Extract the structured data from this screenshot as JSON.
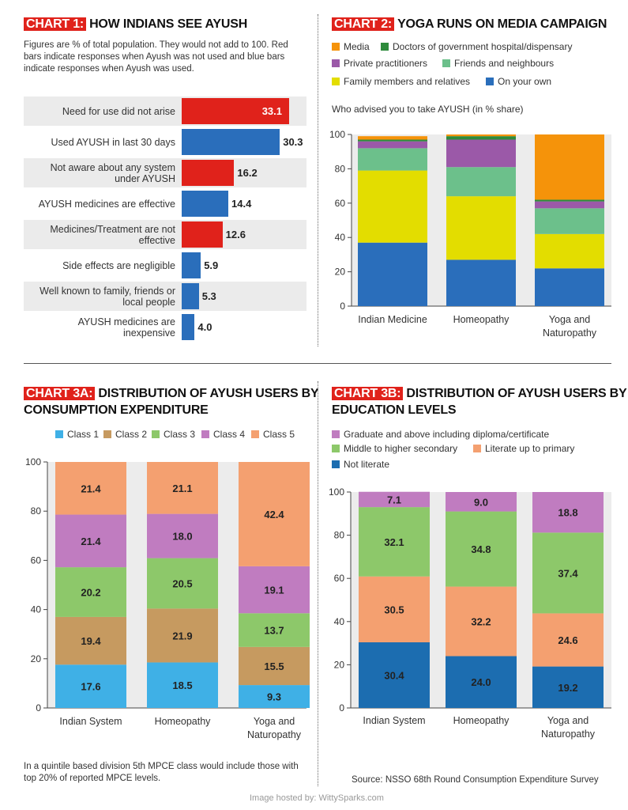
{
  "colors": {
    "red": "#e0221b",
    "blue": "#2a6ebb",
    "media": "#f5930a",
    "doctors_gov": "#2e8b3c",
    "private": "#9b59a8",
    "friends": "#6cc08b",
    "family": "#e3dd00",
    "own": "#2a6ebb",
    "class1": "#3fb0e6",
    "class2": "#c69a60",
    "class3": "#8dc86a",
    "class4": "#c07cc0",
    "class5": "#f4a070",
    "graduate": "#c07cc0",
    "middle": "#8dc86a",
    "literate": "#f4a070",
    "not_literate": "#1c6db0"
  },
  "chart1": {
    "tag": "CHART 1:",
    "title": "HOW INDIANS SEE AYUSH",
    "note": "Figures are % of total population. They would not add to 100. Red bars indicate responses when Ayush was not used and blue bars indicate responses when Ayush was used."
  },
  "chart2": {
    "tag": "CHART 2:",
    "title": "YOGA RUNS ON MEDIA CAMPAIGN",
    "legend": [
      "Media",
      "Doctors of government hospital/dispensary",
      "Private practitioners",
      "Friends and neighbours",
      "Family members and relatives",
      "On your own"
    ],
    "subtitle": "Who advised you to take AYUSH (in % share)"
  },
  "chart3a": {
    "tag": "CHART 3A:",
    "title_line1": "DISTRIBUTION OF AYUSH USERS BY",
    "title_line2": "CONSUMPTION EXPENDITURE",
    "legend": [
      "Class 1",
      "Class 2",
      "Class 3",
      "Class 4",
      "Class 5"
    ],
    "footnote": "In a quintile based division 5th MPCE class would include those with top 20% of reported MPCE levels."
  },
  "chart3b": {
    "tag": "CHART 3B:",
    "title_line1": "DISTRIBUTION OF AYUSH USERS BY",
    "title_line2": "EDUCATION LEVELS",
    "legend": [
      "Graduate and above including diploma/certificate",
      "Middle to higher secondary",
      "Literate up to primary",
      "Not literate"
    ],
    "source": "Source: NSSO 68th Round Consumption Expenditure Survey"
  },
  "credit": "Image hosted by: WittySparks.com",
  "chart_data": [
    {
      "type": "bar",
      "orientation": "horizontal",
      "title": "HOW INDIANS SEE AYUSH",
      "categories": [
        "Need for use did not arise",
        "Used AYUSH in last 30 days",
        "Not aware about any system under AYUSH",
        "AYUSH medicines are effective",
        "Medicines/Treatment are not effective",
        "Side effects are negligible",
        "Well known to family, friends or local people",
        "AYUSH medicines are inexpensive"
      ],
      "values": [
        33.1,
        30.3,
        16.2,
        14.4,
        12.6,
        5.9,
        5.3,
        4.0
      ],
      "labels": [
        "33.1",
        "30.3",
        "16.2",
        "14.4",
        "12.6",
        "5.9",
        "5.3",
        "4.0"
      ],
      "bar_colors": [
        "red",
        "blue",
        "red",
        "blue",
        "red",
        "blue",
        "blue",
        "blue"
      ],
      "xlim": [
        0,
        40
      ]
    },
    {
      "type": "bar",
      "stacked": true,
      "title": "YOGA RUNS ON MEDIA CAMPAIGN",
      "categories": [
        "Indian Medicine",
        "Homeopathy",
        "Yoga and Naturopathy"
      ],
      "ylim": [
        0,
        100
      ],
      "yticks": [
        0,
        20,
        40,
        60,
        80,
        100
      ],
      "series": [
        {
          "name": "On your own",
          "color_key": "own",
          "values": [
            37,
            27,
            22
          ]
        },
        {
          "name": "Family members and relatives",
          "color_key": "family",
          "values": [
            42,
            37,
            20
          ]
        },
        {
          "name": "Friends and neighbours",
          "color_key": "friends",
          "values": [
            13,
            17,
            15
          ]
        },
        {
          "name": "Private practitioners",
          "color_key": "private",
          "values": [
            4,
            16,
            4
          ]
        },
        {
          "name": "Doctors of government hospital/dispensary",
          "color_key": "doctors_gov",
          "values": [
            1,
            2,
            1
          ]
        },
        {
          "name": "Media",
          "color_key": "media",
          "values": [
            2,
            1,
            38
          ]
        }
      ]
    },
    {
      "type": "bar",
      "stacked": true,
      "title": "DISTRIBUTION OF AYUSH USERS BY CONSUMPTION EXPENDITURE",
      "categories": [
        "Indian System",
        "Homeopathy",
        "Yoga and Naturopathy"
      ],
      "ylim": [
        0,
        100
      ],
      "yticks": [
        0,
        20,
        40,
        60,
        80,
        100
      ],
      "series": [
        {
          "name": "Class 1",
          "color_key": "class1",
          "values": [
            17.6,
            18.5,
            9.3
          ],
          "labels": [
            "17.6",
            "18.5",
            "9.3"
          ]
        },
        {
          "name": "Class 2",
          "color_key": "class2",
          "values": [
            19.4,
            21.9,
            15.5
          ],
          "labels": [
            "19.4",
            "21.9",
            "15.5"
          ]
        },
        {
          "name": "Class 3",
          "color_key": "class3",
          "values": [
            20.2,
            20.5,
            13.7
          ],
          "labels": [
            "20.2",
            "20.5",
            "13.7"
          ]
        },
        {
          "name": "Class 4",
          "color_key": "class4",
          "values": [
            21.4,
            18.0,
            19.1
          ],
          "labels": [
            "21.4",
            "18.0",
            "19.1"
          ]
        },
        {
          "name": "Class 5",
          "color_key": "class5",
          "values": [
            21.4,
            21.1,
            42.4
          ],
          "labels": [
            "21.4",
            "21.1",
            "42.4"
          ]
        }
      ]
    },
    {
      "type": "bar",
      "stacked": true,
      "title": "DISTRIBUTION OF AYUSH USERS BY EDUCATION LEVELS",
      "categories": [
        "Indian System",
        "Homeopathy",
        "Yoga and Naturopathy"
      ],
      "ylim": [
        0,
        100
      ],
      "yticks": [
        0,
        20,
        40,
        60,
        80,
        100
      ],
      "series": [
        {
          "name": "Not literate",
          "color_key": "not_literate",
          "values": [
            30.4,
            24.0,
            19.2
          ],
          "labels": [
            "30.4",
            "24.0",
            "19.2"
          ]
        },
        {
          "name": "Literate up to primary",
          "color_key": "literate",
          "values": [
            30.5,
            32.2,
            24.6
          ],
          "labels": [
            "30.5",
            "32.2",
            "24.6"
          ]
        },
        {
          "name": "Middle to higher secondary",
          "color_key": "middle",
          "values": [
            32.1,
            34.8,
            37.4
          ],
          "labels": [
            "32.1",
            "34.8",
            "37.4"
          ]
        },
        {
          "name": "Graduate and above including diploma/certificate",
          "color_key": "graduate",
          "values": [
            7.1,
            9.0,
            18.8
          ],
          "labels": [
            "7.1",
            "9.0",
            "18.8"
          ]
        }
      ]
    }
  ]
}
